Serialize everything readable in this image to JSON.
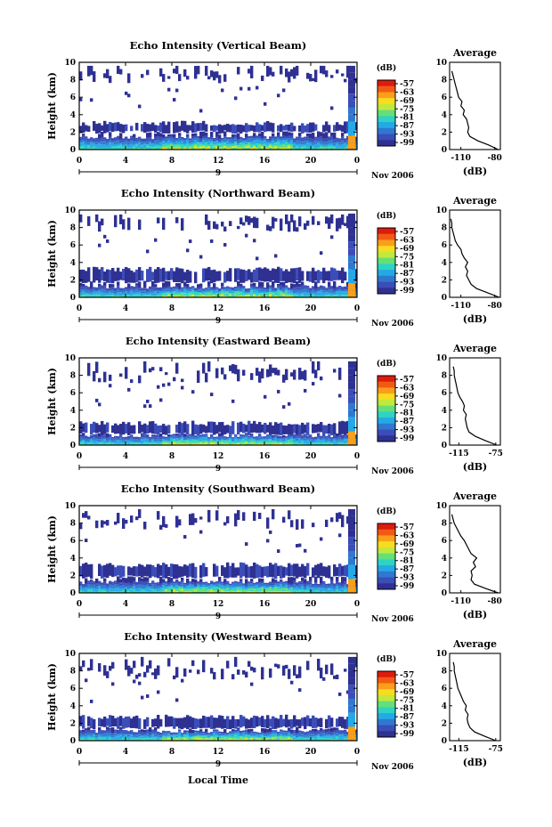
{
  "figure": {
    "x_label": "Local Time",
    "y_label": "Height (km)",
    "date_label": "Nov 2006",
    "date_tick": "9",
    "time_ticks": [
      "0",
      "4",
      "8",
      "12",
      "16",
      "20",
      "0"
    ],
    "height_ticks": [
      "0",
      "2",
      "4",
      "6",
      "8",
      "10"
    ],
    "colorbar_unit": "(dB)",
    "colorbar_ticks": [
      "-57",
      "-63",
      "-69",
      "-75",
      "-81",
      "-87",
      "-93",
      "-99"
    ],
    "profile_title": "Average",
    "profile_xlabel": "(dB)"
  },
  "colors": {
    "scale": [
      "#2e3192",
      "#3b4db8",
      "#2f78d0",
      "#25a9e6",
      "#2fd3c4",
      "#63e07a",
      "#c2e83c",
      "#f7dd1f",
      "#fb9e1a",
      "#f25a14",
      "#dd1c0d"
    ]
  },
  "chart_data": [
    {
      "type": "heatmap",
      "title": "Echo Intensity (Vertical Beam)",
      "x_range_hours": [
        0,
        24
      ],
      "y_range_km": [
        0,
        10
      ],
      "color_range_db": [
        -99,
        -57
      ],
      "boundary_layer_top_km": 1.4,
      "cloud_layer_km": [
        2.0,
        3.0
      ],
      "upper_echo_km": [
        7.5,
        9.6
      ],
      "profile": {
        "title": "Average",
        "x_ticks": [
          "-110",
          "-80"
        ],
        "x_range": [
          -120,
          -75
        ],
        "height_km": [
          0,
          0.5,
          1,
          1.5,
          2,
          2.5,
          3,
          3.5,
          4,
          4.5,
          5,
          5.5,
          6,
          6.5,
          7,
          7.5,
          8,
          8.5,
          9
        ],
        "db": [
          -77,
          -85,
          -95,
          -102,
          -104,
          -103,
          -104,
          -105,
          -108,
          -107,
          -110,
          -109,
          -112,
          -113,
          -114,
          -115,
          -116,
          -117,
          -118
        ]
      }
    },
    {
      "type": "heatmap",
      "title": "Echo Intensity (Northward Beam)",
      "x_range_hours": [
        0,
        24
      ],
      "y_range_km": [
        0,
        10
      ],
      "color_range_db": [
        -99,
        -57
      ],
      "boundary_layer_top_km": 1.2,
      "cloud_layer_km": [
        1.8,
        3.2
      ],
      "upper_echo_km": [
        7.5,
        9.5
      ],
      "profile": {
        "title": "Average",
        "x_ticks": [
          "-110",
          "-80"
        ],
        "x_range": [
          -120,
          -75
        ],
        "height_km": [
          0,
          0.5,
          1,
          1.5,
          2,
          2.5,
          3,
          3.5,
          4,
          4.5,
          5,
          5.5,
          6,
          6.5,
          7,
          7.5,
          8,
          8.5,
          9
        ],
        "db": [
          -76,
          -86,
          -96,
          -101,
          -103,
          -105,
          -104,
          -106,
          -104,
          -107,
          -109,
          -110,
          -113,
          -115,
          -116,
          -117,
          -118,
          -118,
          -119
        ]
      }
    },
    {
      "type": "heatmap",
      "title": "Echo Intensity (Eastward Beam)",
      "x_range_hours": [
        0,
        24
      ],
      "y_range_km": [
        0,
        10
      ],
      "color_range_db": [
        -99,
        -57
      ],
      "boundary_layer_top_km": 1.1,
      "cloud_layer_km": [
        1.3,
        2.5
      ],
      "upper_echo_km": [
        7.0,
        9.6
      ],
      "profile": {
        "title": "Average",
        "x_ticks": [
          "-115",
          "-75"
        ],
        "x_range": [
          -125,
          -70
        ],
        "height_km": [
          0,
          0.5,
          1,
          1.5,
          2,
          2.5,
          3,
          3.5,
          4,
          4.5,
          5,
          5.5,
          6,
          6.5,
          7,
          7.5,
          8,
          8.5,
          9
        ],
        "db": [
          -74,
          -86,
          -97,
          -104,
          -106,
          -107,
          -108,
          -107,
          -110,
          -109,
          -111,
          -114,
          -116,
          -117,
          -118,
          -119,
          -120,
          -120,
          -121
        ]
      }
    },
    {
      "type": "heatmap",
      "title": "Echo Intensity (Southward Beam)",
      "x_range_hours": [
        0,
        24
      ],
      "y_range_km": [
        0,
        10
      ],
      "color_range_db": [
        -99,
        -57
      ],
      "boundary_layer_top_km": 1.2,
      "cloud_layer_km": [
        1.8,
        3.2
      ],
      "upper_echo_km": [
        7.2,
        9.6
      ],
      "profile": {
        "title": "Average",
        "x_ticks": [
          "-110",
          "-80"
        ],
        "x_range": [
          -120,
          -75
        ],
        "height_km": [
          0,
          0.5,
          1,
          1.5,
          2,
          2.5,
          3,
          3.5,
          4,
          4.5,
          5,
          5.5,
          6,
          6.5,
          7,
          7.5,
          8,
          8.5,
          9
        ],
        "db": [
          -77,
          -88,
          -98,
          -101,
          -100,
          -101,
          -97,
          -99,
          -96,
          -101,
          -103,
          -105,
          -107,
          -110,
          -112,
          -114,
          -116,
          -117,
          -118
        ]
      }
    },
    {
      "type": "heatmap",
      "title": "Echo Intensity (Westward Beam)",
      "x_range_hours": [
        0,
        24
      ],
      "y_range_km": [
        0,
        10
      ],
      "color_range_db": [
        -99,
        -57
      ],
      "boundary_layer_top_km": 1.1,
      "cloud_layer_km": [
        1.5,
        2.7
      ],
      "upper_echo_km": [
        7.0,
        9.6
      ],
      "profile": {
        "title": "Average",
        "x_ticks": [
          "-115",
          "-75"
        ],
        "x_range": [
          -125,
          -70
        ],
        "height_km": [
          0,
          0.5,
          1,
          1.5,
          2,
          2.5,
          3,
          3.5,
          4,
          4.5,
          5,
          5.5,
          6,
          6.5,
          7,
          7.5,
          8,
          8.5,
          9
        ],
        "db": [
          -75,
          -87,
          -98,
          -103,
          -105,
          -106,
          -105,
          -108,
          -107,
          -110,
          -112,
          -114,
          -116,
          -117,
          -118,
          -119,
          -120,
          -120,
          -121
        ]
      }
    }
  ]
}
